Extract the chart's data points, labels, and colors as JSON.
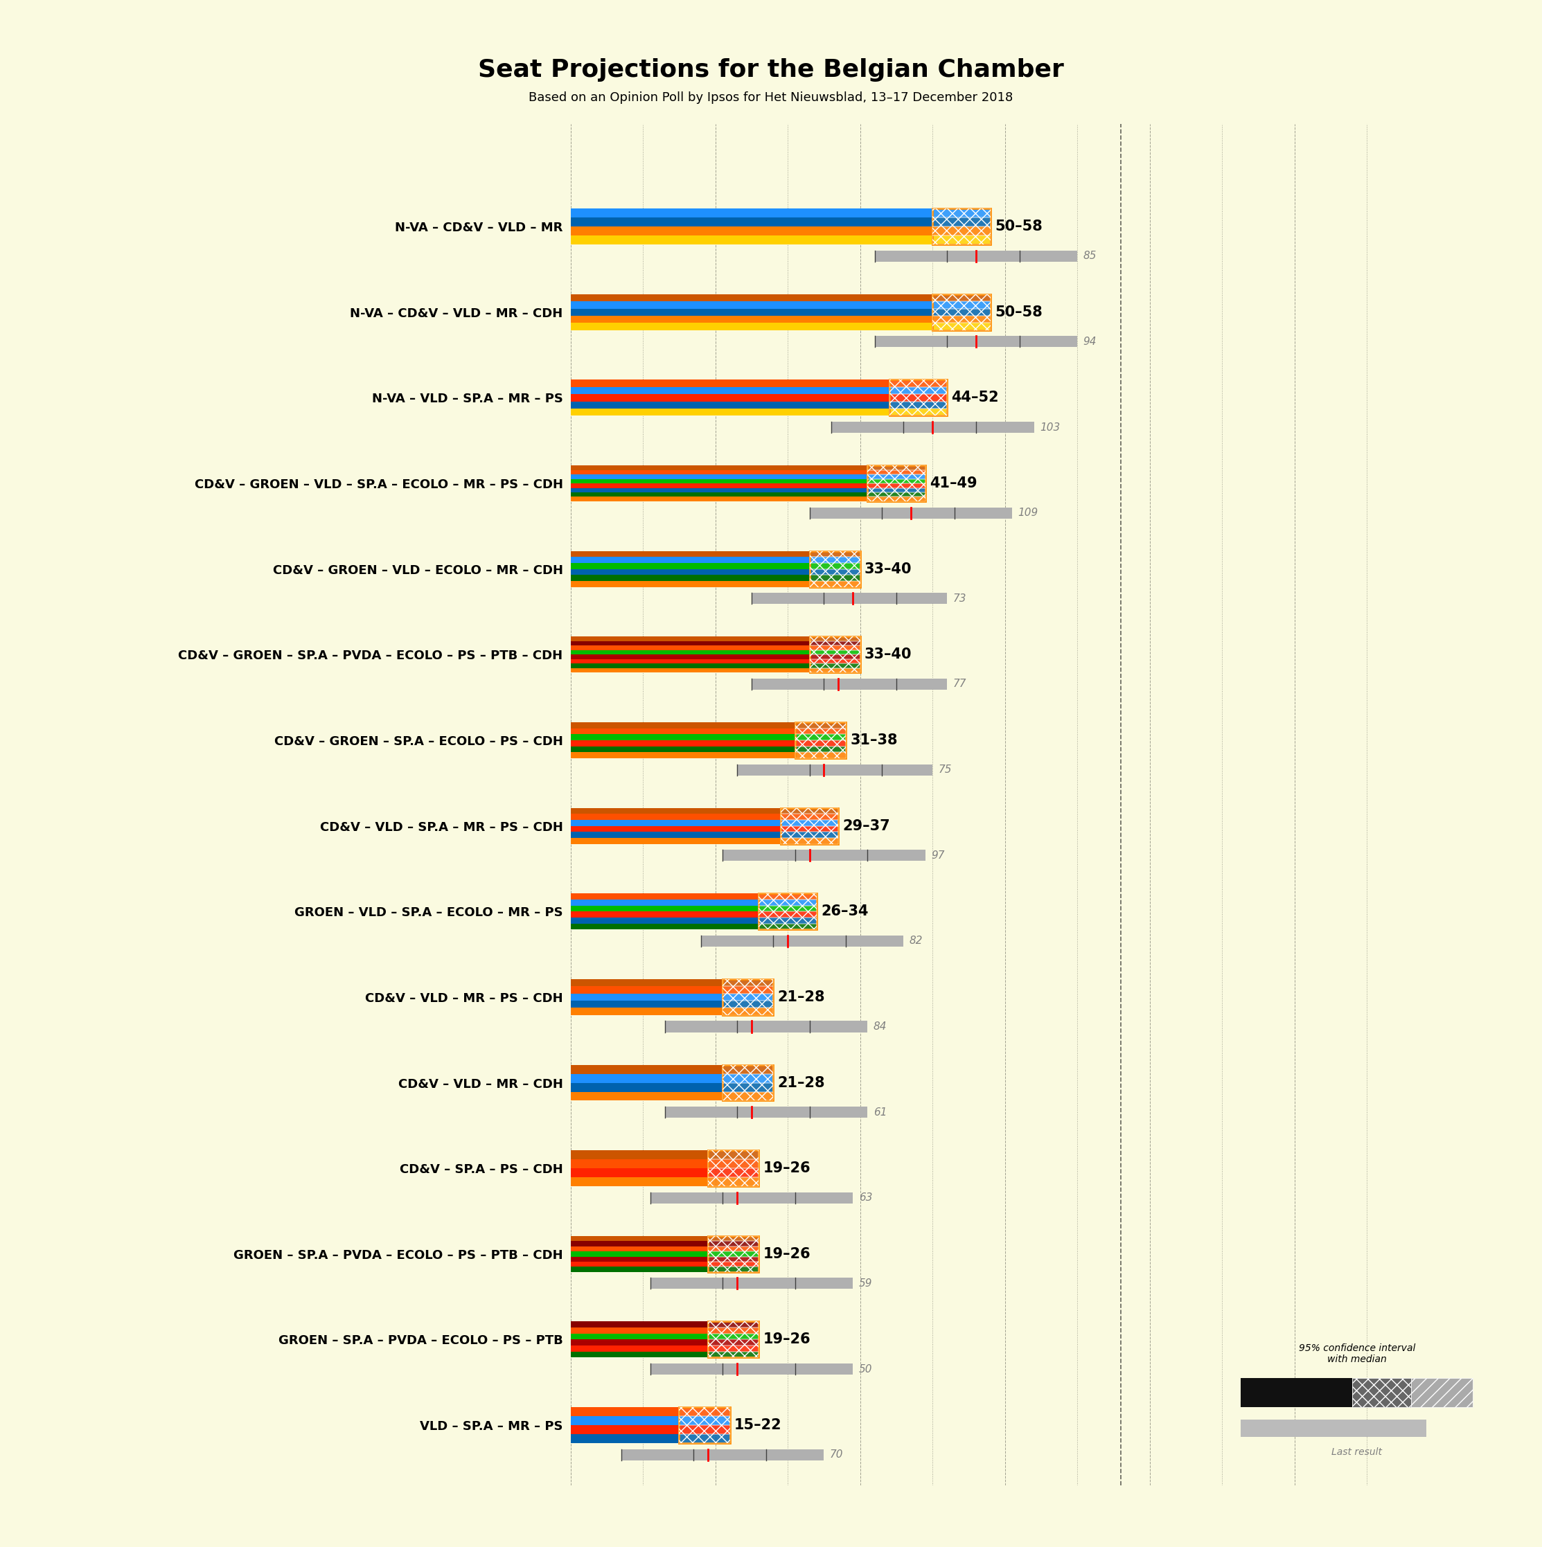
{
  "title": "Seat Projections for the Belgian Chamber",
  "subtitle": "Based on an Opinion Poll by Ipsos for Het Nieuwsblad, 13–17 December 2018",
  "background_color": "#FAFAE0",
  "coalitions": [
    {
      "name": "N-VA – CD&V – VLD – MR",
      "low": 50,
      "high": 58,
      "last": 85,
      "ci_low": 42,
      "ci_high": 70,
      "median": 56,
      "parties": [
        "N-VA",
        "CD&V",
        "VLD",
        "MR"
      ]
    },
    {
      "name": "N-VA – CD&V – VLD – MR – CDH",
      "low": 50,
      "high": 58,
      "last": 94,
      "ci_low": 42,
      "ci_high": 70,
      "median": 56,
      "parties": [
        "N-VA",
        "CD&V",
        "VLD",
        "MR",
        "CDH"
      ]
    },
    {
      "name": "N-VA – VLD – SP.A – MR – PS",
      "low": 44,
      "high": 52,
      "last": 103,
      "ci_low": 36,
      "ci_high": 64,
      "median": 50,
      "parties": [
        "N-VA",
        "VLD",
        "SP.A",
        "MR",
        "PS"
      ]
    },
    {
      "name": "CD&V – GROEN – VLD – SP.A – ECOLO – MR – PS – CDH",
      "low": 41,
      "high": 49,
      "last": 109,
      "ci_low": 33,
      "ci_high": 61,
      "median": 47,
      "parties": [
        "CD&V",
        "GROEN",
        "VLD",
        "SP.A",
        "ECOLO",
        "MR",
        "PS",
        "CDH"
      ]
    },
    {
      "name": "CD&V – GROEN – VLD – ECOLO – MR – CDH",
      "low": 33,
      "high": 40,
      "last": 73,
      "ci_low": 25,
      "ci_high": 52,
      "median": 39,
      "parties": [
        "CD&V",
        "GROEN",
        "VLD",
        "ECOLO",
        "MR",
        "CDH"
      ]
    },
    {
      "name": "CD&V – GROEN – SP.A – PVDA – ECOLO – PS – PTB – CDH",
      "low": 33,
      "high": 40,
      "last": 77,
      "ci_low": 25,
      "ci_high": 52,
      "median": 37,
      "parties": [
        "CD&V",
        "GROEN",
        "SP.A",
        "PVDA",
        "ECOLO",
        "PS",
        "PTB",
        "CDH"
      ]
    },
    {
      "name": "CD&V – GROEN – SP.A – ECOLO – PS – CDH",
      "low": 31,
      "high": 38,
      "last": 75,
      "ci_low": 23,
      "ci_high": 50,
      "median": 35,
      "parties": [
        "CD&V",
        "GROEN",
        "SP.A",
        "ECOLO",
        "PS",
        "CDH"
      ]
    },
    {
      "name": "CD&V – VLD – SP.A – MR – PS – CDH",
      "low": 29,
      "high": 37,
      "last": 97,
      "ci_low": 21,
      "ci_high": 49,
      "median": 33,
      "parties": [
        "CD&V",
        "VLD",
        "SP.A",
        "MR",
        "PS",
        "CDH"
      ]
    },
    {
      "name": "GROEN – VLD – SP.A – ECOLO – MR – PS",
      "low": 26,
      "high": 34,
      "last": 82,
      "ci_low": 18,
      "ci_high": 46,
      "median": 30,
      "parties": [
        "GROEN",
        "VLD",
        "SP.A",
        "ECOLO",
        "MR",
        "PS"
      ]
    },
    {
      "name": "CD&V – VLD – MR – PS – CDH",
      "low": 21,
      "high": 28,
      "last": 84,
      "ci_low": 13,
      "ci_high": 41,
      "median": 25,
      "parties": [
        "CD&V",
        "VLD",
        "MR",
        "PS",
        "CDH"
      ]
    },
    {
      "name": "CD&V – VLD – MR – CDH",
      "low": 21,
      "high": 28,
      "last": 61,
      "ci_low": 13,
      "ci_high": 41,
      "median": 25,
      "parties": [
        "CD&V",
        "VLD",
        "MR",
        "CDH"
      ]
    },
    {
      "name": "CD&V – SP.A – PS – CDH",
      "low": 19,
      "high": 26,
      "last": 63,
      "ci_low": 11,
      "ci_high": 39,
      "median": 23,
      "parties": [
        "CD&V",
        "SP.A",
        "PS",
        "CDH"
      ]
    },
    {
      "name": "GROEN – SP.A – PVDA – ECOLO – PS – PTB – CDH",
      "low": 19,
      "high": 26,
      "last": 59,
      "ci_low": 11,
      "ci_high": 39,
      "median": 23,
      "parties": [
        "GROEN",
        "SP.A",
        "PVDA",
        "ECOLO",
        "PS",
        "PTB",
        "CDH"
      ]
    },
    {
      "name": "GROEN – SP.A – PVDA – ECOLO – PS – PTB",
      "low": 19,
      "high": 26,
      "last": 50,
      "ci_low": 11,
      "ci_high": 39,
      "median": 23,
      "parties": [
        "GROEN",
        "SP.A",
        "PVDA",
        "ECOLO",
        "PS",
        "PTB"
      ]
    },
    {
      "name": "VLD – SP.A – MR – PS",
      "low": 15,
      "high": 22,
      "last": 70,
      "ci_low": 7,
      "ci_high": 35,
      "median": 19,
      "parties": [
        "VLD",
        "SP.A",
        "MR",
        "PS"
      ]
    }
  ],
  "party_colors": {
    "N-VA": "#FFD000",
    "CD&V": "#FF7F00",
    "VLD": "#0062AE",
    "MR": "#1E90FF",
    "CDH": "#CC5500",
    "SP.A": "#FF2200",
    "PS": "#FF5000",
    "GROEN": "#007000",
    "ECOLO": "#00BB00",
    "PVDA": "#AA0000",
    "PTB": "#880000"
  },
  "majority_line": 76,
  "xmax": 115,
  "scale": 1.0
}
